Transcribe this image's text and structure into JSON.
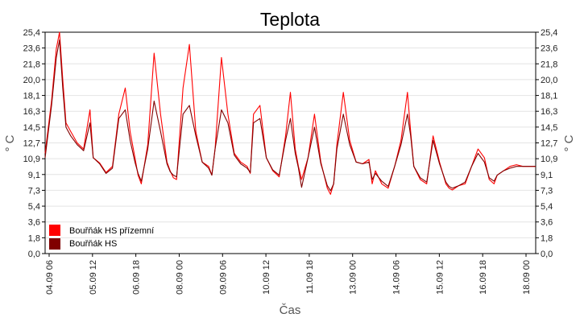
{
  "colors": {
    "series1": "#ff0000",
    "series2": "#800000",
    "grid": "#e4e4e4",
    "axis": "#000000"
  },
  "chart_data": {
    "type": "line",
    "title": "Teplota",
    "xlabel": "Čas",
    "ylabel": "° C",
    "ylim": [
      0,
      25.4
    ],
    "yticks": [
      "0,0",
      "1,8",
      "3,6",
      "5,4",
      "7,3",
      "9,1",
      "10,9",
      "12,7",
      "14,5",
      "16,3",
      "18,1",
      "20,0",
      "21,8",
      "23,6",
      "25,4"
    ],
    "xticks": [
      "04.09 06",
      "05.09 12",
      "06.09 18",
      "08.09 00",
      "09.09 06",
      "10.09 12",
      "11.09 18",
      "13.09 00",
      "14.09 06",
      "15.09 12",
      "16.09 18",
      "18.09 00"
    ],
    "x_range_hours": [
      0,
      306
    ],
    "grid": true,
    "legend_position": "bottom-left",
    "x_hours": [
      0,
      4,
      7,
      9,
      11,
      13,
      16,
      20,
      24,
      28,
      30,
      34,
      38,
      42,
      46,
      50,
      53,
      56,
      58,
      60,
      64,
      68,
      72,
      76,
      78,
      80,
      82,
      86,
      90,
      94,
      98,
      102,
      104,
      106,
      110,
      114,
      118,
      122,
      126,
      128,
      130,
      134,
      138,
      142,
      146,
      150,
      153,
      156,
      158,
      160,
      164,
      168,
      172,
      176,
      178,
      180,
      182,
      186,
      190,
      194,
      198,
      202,
      204,
      206,
      210,
      214,
      218,
      222,
      226,
      228,
      230,
      234,
      238,
      242,
      246,
      250,
      252,
      254,
      258,
      262,
      266,
      270,
      274,
      277,
      280,
      282,
      286,
      290,
      294,
      298,
      302,
      306
    ],
    "series": [
      {
        "name": "Bouřňák HS přízemní",
        "values": [
          11.5,
          17.5,
          23.5,
          25.4,
          20.0,
          15.0,
          14.0,
          12.7,
          12.0,
          16.5,
          11.0,
          10.4,
          9.3,
          10.0,
          16.0,
          19.0,
          14.0,
          11.0,
          9.0,
          8.0,
          12.5,
          23.0,
          16.0,
          10.5,
          9.5,
          8.7,
          8.5,
          19.0,
          24.0,
          14.0,
          10.5,
          10.0,
          9.0,
          12.0,
          22.5,
          16.0,
          11.5,
          10.5,
          10.0,
          9.2,
          16.0,
          17.0,
          11.0,
          9.5,
          8.8,
          13.5,
          18.5,
          12.0,
          10.0,
          8.5,
          11.0,
          16.0,
          10.5,
          7.5,
          6.8,
          8.0,
          12.5,
          18.5,
          13.0,
          10.5,
          10.3,
          10.8,
          8.0,
          9.5,
          8.0,
          7.5,
          10.0,
          13.0,
          18.5,
          14.0,
          10.0,
          8.5,
          8.0,
          13.5,
          10.5,
          8.0,
          7.5,
          7.3,
          7.8,
          8.0,
          10.0,
          12.0,
          11.0,
          8.5,
          8.0,
          9.0,
          9.5,
          10.0,
          10.2,
          10.0,
          10.0,
          10.0
        ]
      },
      {
        "name": "Bouřňák HS",
        "values": [
          11.0,
          17.0,
          22.5,
          24.5,
          19.0,
          14.5,
          13.5,
          12.5,
          11.8,
          15.0,
          11.0,
          10.3,
          9.2,
          9.8,
          15.5,
          16.5,
          13.0,
          10.5,
          9.2,
          8.3,
          12.0,
          17.5,
          14.0,
          10.3,
          9.4,
          9.0,
          8.8,
          16.0,
          17.0,
          13.5,
          10.5,
          9.8,
          9.0,
          12.0,
          16.5,
          15.0,
          11.3,
          10.3,
          9.8,
          9.3,
          15.0,
          15.5,
          11.0,
          9.6,
          9.0,
          13.0,
          15.5,
          11.5,
          9.8,
          7.6,
          11.0,
          14.5,
          10.3,
          7.8,
          7.2,
          8.0,
          12.0,
          16.0,
          12.5,
          10.5,
          10.3,
          10.5,
          8.5,
          9.2,
          8.3,
          7.7,
          10.0,
          12.5,
          16.0,
          13.5,
          10.0,
          8.7,
          8.2,
          13.0,
          10.3,
          8.2,
          7.7,
          7.5,
          7.8,
          8.2,
          10.0,
          11.5,
          10.5,
          8.7,
          8.3,
          9.0,
          9.5,
          9.8,
          10.0,
          10.0,
          10.0,
          10.0
        ]
      }
    ]
  }
}
